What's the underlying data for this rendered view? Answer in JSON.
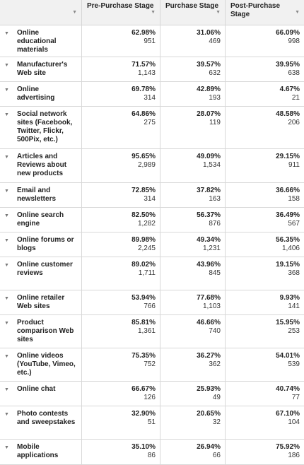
{
  "table": {
    "headers": [
      "",
      "Pre-Purchase Stage",
      "Purchase Stage",
      "Post-Purchase Stage"
    ],
    "rows": [
      {
        "label": "Online educational materials",
        "pre_pct": "62.98%",
        "pre_n": "951",
        "pur_pct": "31.06%",
        "pur_n": "469",
        "post_pct": "66.09%",
        "post_n": "998"
      },
      {
        "label": "Manufacturer's Web site",
        "pre_pct": "71.57%",
        "pre_n": "1,143",
        "pur_pct": "39.57%",
        "pur_n": "632",
        "post_pct": "39.95%",
        "post_n": "638"
      },
      {
        "label": "Online advertising",
        "pre_pct": "69.78%",
        "pre_n": "314",
        "pur_pct": "42.89%",
        "pur_n": "193",
        "post_pct": "4.67%",
        "post_n": "21"
      },
      {
        "label": "Social network sites (Facebook, Twitter, Flickr, 500Pix, etc.)",
        "pre_pct": "64.86%",
        "pre_n": "275",
        "pur_pct": "28.07%",
        "pur_n": "119",
        "post_pct": "48.58%",
        "post_n": "206"
      },
      {
        "label": "Articles and Reviews about new products",
        "pre_pct": "95.65%",
        "pre_n": "2,989",
        "pur_pct": "49.09%",
        "pur_n": "1,534",
        "post_pct": "29.15%",
        "post_n": "911"
      },
      {
        "label": "Email and newsletters",
        "pre_pct": "72.85%",
        "pre_n": "314",
        "pur_pct": "37.82%",
        "pur_n": "163",
        "post_pct": "36.66%",
        "post_n": "158"
      },
      {
        "label": "Online search engine",
        "pre_pct": "82.50%",
        "pre_n": "1,282",
        "pur_pct": "56.37%",
        "pur_n": "876",
        "post_pct": "36.49%",
        "post_n": "567"
      },
      {
        "label": "Online forums or blogs",
        "pre_pct": "89.98%",
        "pre_n": "2,245",
        "pur_pct": "49.34%",
        "pur_n": "1,231",
        "post_pct": "56.35%",
        "post_n": "1,406"
      },
      {
        "label": "Online customer reviews",
        "pre_pct": "89.02%",
        "pre_n": "1,711",
        "pur_pct": "43.96%",
        "pur_n": "845",
        "post_pct": "19.15%",
        "post_n": "368"
      },
      {
        "label": "Online retailer Web sites",
        "pre_pct": "53.94%",
        "pre_n": "766",
        "pur_pct": "77.68%",
        "pur_n": "1,103",
        "post_pct": "9.93%",
        "post_n": "141"
      },
      {
        "label": "Product comparison Web sites",
        "pre_pct": "85.81%",
        "pre_n": "1,361",
        "pur_pct": "46.66%",
        "pur_n": "740",
        "post_pct": "15.95%",
        "post_n": "253"
      },
      {
        "label": "Online videos (YouTube, Vimeo, etc.)",
        "pre_pct": "75.35%",
        "pre_n": "752",
        "pur_pct": "36.27%",
        "pur_n": "362",
        "post_pct": "54.01%",
        "post_n": "539"
      },
      {
        "label": "Online chat",
        "pre_pct": "66.67%",
        "pre_n": "126",
        "pur_pct": "25.93%",
        "pur_n": "49",
        "post_pct": "40.74%",
        "post_n": "77"
      },
      {
        "label": "Photo contests and sweepstakes",
        "pre_pct": "32.90%",
        "pre_n": "51",
        "pur_pct": "20.65%",
        "pur_n": "32",
        "post_pct": "67.10%",
        "post_n": "104"
      },
      {
        "label": "Mobile applications",
        "pre_pct": "35.10%",
        "pre_n": "86",
        "pur_pct": "26.94%",
        "pur_n": "66",
        "post_pct": "75.92%",
        "post_n": "186"
      }
    ]
  },
  "icons": {
    "sort": "sort-down-triangle-icon",
    "expand": "expand-down-triangle-icon"
  }
}
